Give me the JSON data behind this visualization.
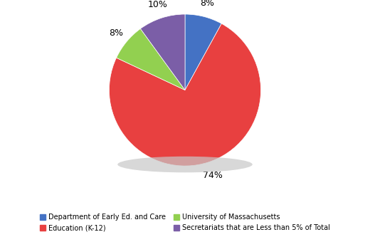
{
  "labels": [
    "Department of Early Ed. and Care",
    "Education (K-12)",
    "University of Massachusetts",
    "Secretariats that are Less than 5% of Total"
  ],
  "values": [
    8,
    74,
    8,
    10
  ],
  "colors": [
    "#4472C4",
    "#E84040",
    "#92D050",
    "#7B5EA7"
  ],
  "shadow_color": "#AAAAAA",
  "pct_labels": [
    "8%",
    "74%",
    "8%",
    "10%"
  ],
  "startangle": 90,
  "figsize": [
    5.2,
    3.33
  ],
  "dpi": 100,
  "legend_order": [
    0,
    1,
    2,
    3
  ]
}
